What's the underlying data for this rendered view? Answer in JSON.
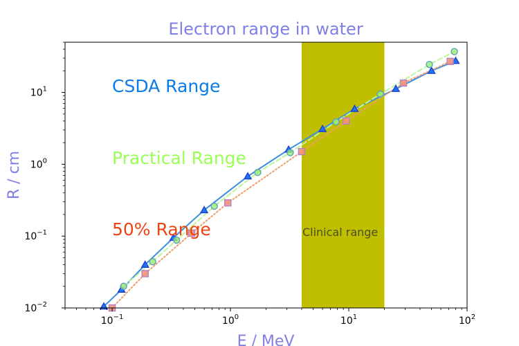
{
  "chart_data": {
    "type": "line",
    "title": "Electron range in water",
    "xlabel": "E / MeV",
    "ylabel": "R / cm",
    "xscale": "log",
    "yscale": "log",
    "xlim": [
      0.04,
      100
    ],
    "ylim": [
      0.01,
      50
    ],
    "x_ticks": [
      {
        "base": "10",
        "exp": "−1",
        "value": 0.1
      },
      {
        "base": "10",
        "exp": "0",
        "value": 1
      },
      {
        "base": "10",
        "exp": "1",
        "value": 10
      },
      {
        "base": "10",
        "exp": "2",
        "value": 100
      }
    ],
    "y_ticks": [
      {
        "base": "10",
        "exp": "−2",
        "value": 0.01
      },
      {
        "base": "10",
        "exp": "−1",
        "value": 0.1
      },
      {
        "base": "10",
        "exp": "0",
        "value": 1
      },
      {
        "base": "10",
        "exp": "1",
        "value": 10
      }
    ],
    "shaded_region": {
      "x_start": 4,
      "x_end": 20,
      "label": "Clinical range",
      "color": "#bfbf00"
    },
    "series": [
      {
        "name": "CSDA Range",
        "color": "#0b7be8",
        "line_color": "#3b8fe0",
        "marker": "triangle",
        "marker_fill": "#1f77f4",
        "marker_edge": "#1f3fcf",
        "line_style": "solid",
        "x": [
          0.085,
          0.12,
          0.19,
          0.33,
          0.6,
          1.4,
          3.1,
          6,
          11.2,
          25,
          50,
          80
        ],
        "y": [
          0.0105,
          0.018,
          0.04,
          0.095,
          0.23,
          0.68,
          1.6,
          3.1,
          5.9,
          11.2,
          20,
          27.5
        ]
      },
      {
        "name": "Practical Range",
        "color": "#99ff55",
        "line_color": "#bdf59a",
        "marker": "circle",
        "marker_fill": "#99ee77",
        "marker_edge": "#5f9fb7",
        "line_style": "dashed",
        "x": [
          0.125,
          0.22,
          0.35,
          0.73,
          1.7,
          3.2,
          7.8,
          18.5,
          48,
          78
        ],
        "y": [
          0.02,
          0.044,
          0.088,
          0.26,
          0.77,
          1.45,
          3.9,
          9.5,
          24.5,
          37
        ]
      },
      {
        "name": "50% Range",
        "color": "#ee4411",
        "line_color": "#ee9f6a",
        "marker": "square",
        "marker_fill": "#f29477",
        "marker_edge": "#b27fc9",
        "line_style": "dotted",
        "x": [
          0.1,
          0.19,
          0.47,
          0.95,
          4,
          9.5,
          29,
          72
        ],
        "y": [
          0.01,
          0.03,
          0.11,
          0.29,
          1.5,
          4,
          13.5,
          27
        ]
      }
    ],
    "annotations": [
      {
        "text": "CSDA Range",
        "color": "#0b7be8"
      },
      {
        "text": "Practical Range",
        "color": "#99ff55"
      },
      {
        "text": "50% Range",
        "color": "#ee4411"
      }
    ]
  }
}
